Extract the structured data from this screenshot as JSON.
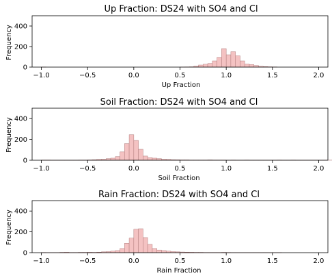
{
  "chart_data": [
    {
      "type": "bar",
      "title": "Up Fraction: DS24 with SO4 and Cl",
      "xlabel": "Up Fraction",
      "ylabel": "Frequency",
      "xlim": [
        -1.1,
        2.1
      ],
      "ylim": [
        0,
        500
      ],
      "xticks": [
        "−1.0",
        "−0.5",
        "0.0",
        "0.5",
        "1.0",
        "1.5",
        "2.0"
      ],
      "xtick_values": [
        -1.0,
        -0.5,
        0.0,
        0.5,
        1.0,
        1.5,
        2.0
      ],
      "yticks": [
        "0",
        "200",
        "400"
      ],
      "ytick_values": [
        0,
        200,
        400
      ],
      "bin_start": -1.0,
      "bin_width": 0.05,
      "counts": [
        1,
        0,
        0,
        0,
        0,
        0,
        0,
        0,
        0,
        0,
        0,
        0,
        0,
        0,
        0,
        0,
        0,
        0,
        0,
        0,
        0,
        0,
        0,
        0,
        0,
        0,
        0,
        0,
        0,
        0,
        1,
        2,
        3,
        10,
        20,
        28,
        35,
        60,
        95,
        180,
        120,
        150,
        110,
        60,
        30,
        25,
        15,
        8,
        5,
        3,
        2,
        0,
        0,
        0,
        0,
        0,
        0,
        0,
        0,
        0,
        0,
        0,
        0,
        0,
        0
      ]
    },
    {
      "type": "bar",
      "title": "Soil Fraction: DS24 with SO4 and Cl",
      "xlabel": "Soil Fraction",
      "ylabel": "Frequency",
      "xlim": [
        -1.1,
        2.1
      ],
      "ylim": [
        0,
        500
      ],
      "xticks": [
        "−1.0",
        "−0.5",
        "0.0",
        "0.5",
        "1.0",
        "1.5",
        "2.0"
      ],
      "xtick_values": [
        -1.0,
        -0.5,
        0.0,
        0.5,
        1.0,
        1.5,
        2.0
      ],
      "yticks": [
        "0",
        "200",
        "400"
      ],
      "ytick_values": [
        0,
        200,
        400
      ],
      "bin_start": -1.0,
      "bin_width": 0.05,
      "counts": [
        2,
        2,
        1,
        1,
        1,
        1,
        1,
        1,
        2,
        2,
        3,
        5,
        8,
        10,
        15,
        20,
        35,
        80,
        160,
        245,
        190,
        105,
        40,
        25,
        20,
        15,
        10,
        8,
        5,
        4,
        3,
        3,
        2,
        2,
        2,
        2,
        3,
        2,
        2,
        2,
        1,
        2,
        1,
        1,
        2,
        1,
        1,
        1,
        1,
        1,
        1,
        2,
        1,
        1,
        2,
        1,
        1,
        1,
        1,
        1,
        1,
        1,
        1,
        1
      ]
    },
    {
      "type": "bar",
      "title": "Rain Fraction: DS24 with SO4 and Cl",
      "xlabel": "Rain Fraction",
      "ylabel": "Frequency",
      "xlim": [
        -1.1,
        2.1
      ],
      "ylim": [
        0,
        500
      ],
      "xticks": [
        "−1.0",
        "−0.5",
        "0.0",
        "0.5",
        "1.0",
        "1.5",
        "2.0"
      ],
      "xtick_values": [
        -1.0,
        -0.5,
        0.0,
        0.5,
        1.0,
        1.5,
        2.0
      ],
      "yticks": [
        "0",
        "200",
        "400"
      ],
      "ytick_values": [
        0,
        200,
        400
      ],
      "bin_start": -1.0,
      "bin_width": 0.05,
      "counts": [
        2,
        1,
        1,
        1,
        3,
        4,
        2,
        2,
        3,
        3,
        4,
        3,
        5,
        8,
        10,
        15,
        20,
        40,
        90,
        140,
        225,
        230,
        145,
        80,
        40,
        25,
        20,
        15,
        10,
        8,
        6,
        5,
        4,
        3,
        3,
        2,
        2,
        2,
        2,
        3,
        2,
        1,
        1,
        1,
        1,
        1,
        1,
        1,
        1,
        1,
        1,
        1,
        0,
        0,
        0,
        0,
        0,
        0,
        0,
        0,
        0,
        0,
        0,
        0
      ]
    }
  ]
}
